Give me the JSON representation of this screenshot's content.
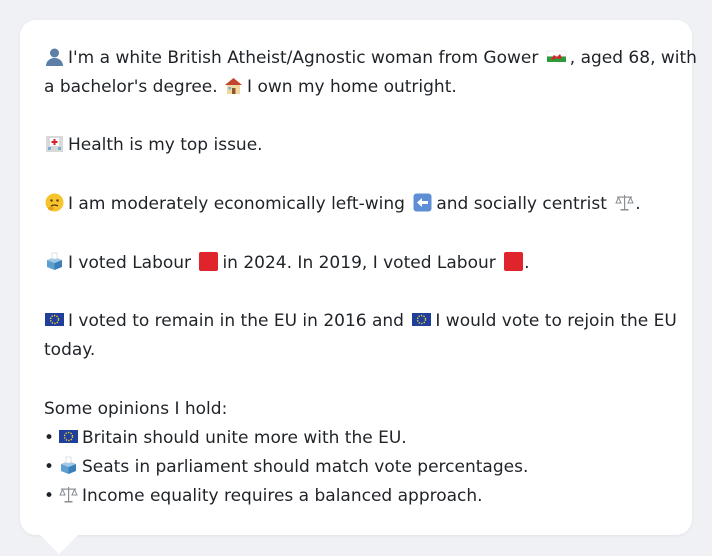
{
  "profile": {
    "intro_line1_a": "I'm a white British Atheist/Agnostic woman from Gower",
    "intro_line1_b": ", aged 68, with",
    "intro_line2_a": "a bachelor's degree.",
    "intro_line2_b": "I own my home outright.",
    "health": "Health is my top issue.",
    "econ_a": "I am moderately economically left-wing",
    "econ_b": "and socially centrist",
    "econ_c": ".",
    "vote_a": "I voted Labour",
    "vote_b": "in 2024. In 2019, I voted Labour",
    "vote_c": ".",
    "eu_a": "I voted to remain in the EU in 2016 and",
    "eu_b": "I would vote to rejoin the EU",
    "eu_line2": "today.",
    "opinions_heading": "Some opinions I hold:",
    "opinions": [
      {
        "bullet": "•",
        "icon": "eu-flag-icon",
        "text": "Britain should unite more with the EU."
      },
      {
        "bullet": "•",
        "icon": "ballot-box-icon",
        "text": "Seats in parliament should match vote percentages."
      },
      {
        "bullet": "•",
        "icon": "balance-scale-icon",
        "text": "Income equality requires a balanced approach."
      }
    ]
  },
  "colors": {
    "background": "#f0f1f4",
    "card": "#ffffff",
    "text": "#1f2328",
    "labour_red": "#e0242b",
    "eu_blue": "#1f3f9a"
  }
}
